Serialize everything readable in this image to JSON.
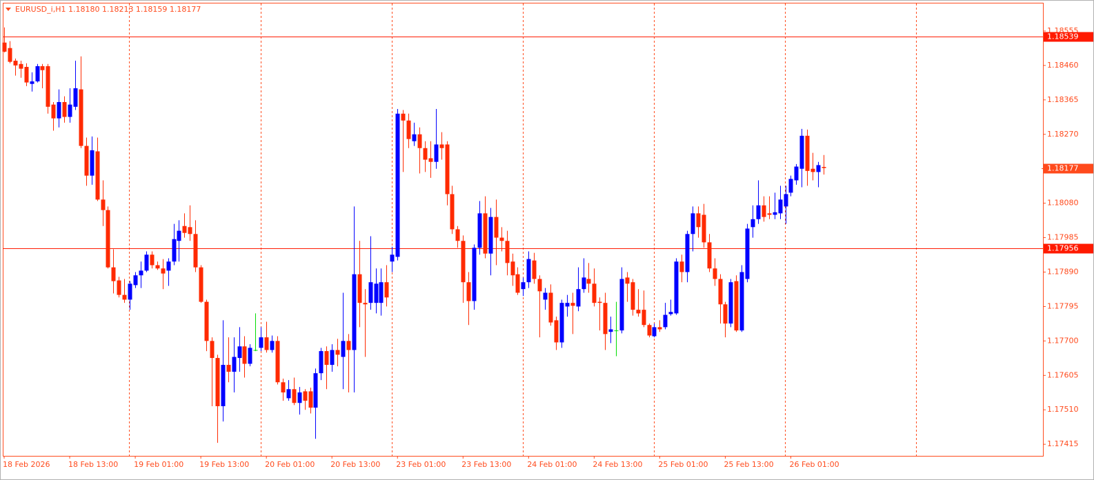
{
  "chart_data": {
    "type": "candlestick",
    "title": "EURUSD_i,H1  1.18180 1.18213 1.18159 1.18177",
    "categories": [
      "18 Feb 2026",
      null,
      null,
      null,
      null,
      null,
      null,
      null,
      null,
      null,
      null,
      null,
      "18 Feb 13:00",
      null,
      null,
      null,
      null,
      null,
      null,
      null,
      null,
      null,
      null,
      null,
      "19 Feb 01:00",
      null,
      null,
      null,
      null,
      null,
      null,
      null,
      null,
      null,
      null,
      null,
      "19 Feb 13:00",
      null,
      null,
      null,
      null,
      null,
      null,
      null,
      null,
      null,
      null,
      null,
      "20 Feb 01:00",
      null,
      null,
      null,
      null,
      null,
      null,
      null,
      null,
      null,
      null,
      null,
      "20 Feb 13:00",
      null,
      null,
      null,
      null,
      null,
      null,
      null,
      null,
      null,
      null,
      null,
      "23 Feb 01:00",
      null,
      null,
      null,
      null,
      null,
      null,
      null,
      null,
      null,
      null,
      null,
      "23 Feb 13:00",
      null,
      null,
      null,
      null,
      null,
      null,
      null,
      null,
      null,
      null,
      null,
      "24 Feb 01:00",
      null,
      null,
      null,
      null,
      null,
      null,
      null,
      null,
      null,
      null,
      null,
      "24 Feb 13:00",
      null,
      null,
      null,
      null,
      null,
      null,
      null,
      null,
      null,
      null,
      null,
      "25 Feb 01:00",
      null,
      null,
      null,
      null,
      null,
      null,
      null,
      null,
      null,
      null,
      null,
      "25 Feb 13:00",
      null,
      null,
      null,
      null,
      null,
      null,
      null,
      null,
      null,
      null,
      null,
      "26 Feb 01:00",
      null,
      null,
      null,
      null,
      null,
      null
    ],
    "open": [
      1.18523,
      1.18508,
      1.18473,
      1.18464,
      1.18456,
      1.18409,
      1.18416,
      1.18458,
      1.18458,
      1.18352,
      1.18314,
      1.18359,
      1.18318,
      1.18346,
      1.18394,
      1.18238,
      1.18156,
      1.18223,
      1.1809,
      1.18061,
      1.17903,
      1.17867,
      1.17827,
      1.17814,
      1.17854,
      1.17881,
      1.17894,
      1.17938,
      1.17909,
      1.179,
      1.17894,
      1.17919,
      1.17976,
      1.18017,
      1.18014,
      1.17995,
      1.17903,
      1.17808,
      1.177,
      1.17653,
      1.1752,
      1.17634,
      1.17615,
      1.17653,
      1.17685,
      1.17637,
      1.17675,
      1.17681,
      1.1771,
      1.17675,
      1.177,
      1.17586,
      1.17542,
      1.17567,
      1.17529,
      1.17561,
      1.17561,
      1.17516,
      1.17611,
      1.17672,
      1.17634,
      1.17675,
      1.17656,
      1.177,
      1.17675,
      1.17884,
      1.17805,
      1.17805,
      1.17805,
      1.17805,
      1.17862,
      1.17919,
      1.17932,
      1.18327,
      1.18308,
      1.18251,
      1.1827,
      1.18232,
      1.18204,
      1.18194,
      1.18242,
      1.18242,
      1.18105,
      1.18008,
      1.17976,
      1.17862,
      1.1781,
      1.17957,
      1.18052,
      1.17941,
      1.18042,
      1.17985,
      1.17976,
      1.17919,
      1.17884,
      1.17843,
      1.17862,
      1.17922,
      1.17871,
      1.17814,
      1.17833,
      1.17757,
      1.17696,
      1.17795,
      1.17805,
      1.17795,
      1.17843,
      1.17871,
      1.17858,
      1.17808,
      1.17805,
      1.17725,
      1.17729,
      1.17729,
      1.17875,
      1.17862,
      1.17786,
      1.17786,
      1.17744,
      1.17713,
      1.17738,
      1.17738,
      1.17774,
      1.17776,
      1.17919,
      1.1789,
      1.17995,
      1.18052,
      1.18048,
      1.17972,
      1.179,
      1.17871,
      1.17801,
      1.17748,
      1.17865,
      1.17729,
      1.17871,
      1.18014,
      1.18036,
      1.18074,
      1.18052,
      1.18048,
      1.18052,
      1.18071,
      1.18109,
      1.18143,
      1.18175,
      1.18266,
      1.18175,
      1.18166,
      1.1818
    ],
    "high": [
      1.18565,
      1.18527,
      1.18479,
      1.18473,
      1.18466,
      1.18441,
      1.18464,
      1.18464,
      1.18464,
      1.18359,
      1.18394,
      1.18375,
      1.18397,
      1.18473,
      1.18485,
      1.18261,
      1.18264,
      1.18261,
      1.18143,
      1.18071,
      1.17953,
      1.17877,
      1.17871,
      1.17865,
      1.1789,
      1.17919,
      1.17947,
      1.17947,
      1.17919,
      1.17926,
      1.17928,
      1.18023,
      1.18033,
      1.18052,
      1.18074,
      1.18033,
      1.17909,
      1.17814,
      1.1771,
      1.17662,
      1.17757,
      1.1771,
      1.1771,
      1.17738,
      1.17713,
      1.17691,
      1.17776,
      1.17738,
      1.17753,
      1.17715,
      1.17713,
      1.17596,
      1.17592,
      1.17599,
      1.17573,
      1.17567,
      1.17571,
      1.17624,
      1.17681,
      1.17685,
      1.17691,
      1.17706,
      1.17833,
      1.17719,
      1.18071,
      1.17976,
      1.17843,
      1.17989,
      1.179,
      1.179,
      1.17909,
      1.1796,
      1.1834,
      1.18337,
      1.18327,
      1.18302,
      1.18289,
      1.18251,
      1.18251,
      1.1834,
      1.18276,
      1.18251,
      1.18128,
      1.18017,
      1.17991,
      1.1789,
      1.17966,
      1.18086,
      1.18099,
      1.18067,
      1.1809,
      1.18014,
      1.18004,
      1.17941,
      1.17903,
      1.17875,
      1.17947,
      1.17943,
      1.17881,
      1.17846,
      1.17856,
      1.17767,
      1.17814,
      1.17827,
      1.17833,
      1.17903,
      1.17928,
      1.17915,
      1.179,
      1.1782,
      1.17833,
      1.17767,
      1.17808,
      1.17903,
      1.1789,
      1.17871,
      1.17843,
      1.17839,
      1.17748,
      1.17748,
      1.17757,
      1.17805,
      1.17814,
      1.17928,
      1.17938,
      1.18004,
      1.18071,
      1.18071,
      1.18078,
      1.17995,
      1.17928,
      1.17884,
      1.17808,
      1.17871,
      1.17881,
      1.17909,
      1.18023,
      1.18074,
      1.18143,
      1.18099,
      1.18099,
      1.18109,
      1.18128,
      1.18128,
      1.18156,
      1.18188,
      1.18285,
      1.18283,
      1.18219,
      1.18194,
      1.18213
    ],
    "low": [
      1.18496,
      1.18466,
      1.18432,
      1.18426,
      1.18403,
      1.18388,
      1.18413,
      1.18397,
      1.18327,
      1.1828,
      1.18289,
      1.18302,
      1.18302,
      1.18337,
      1.18232,
      1.18128,
      1.18131,
      1.18086,
      1.18017,
      1.179,
      1.17831,
      1.1782,
      1.17805,
      1.17786,
      1.17846,
      1.17846,
      1.1789,
      1.179,
      1.17896,
      1.17843,
      1.17852,
      1.17909,
      1.17919,
      1.17985,
      1.17976,
      1.1789,
      1.17805,
      1.17672,
      1.1752,
      1.17419,
      1.17478,
      1.17586,
      1.17558,
      1.17615,
      1.17599,
      1.1763,
      1.17672,
      1.17672,
      1.17668,
      1.17668,
      1.1758,
      1.17535,
      1.17535,
      1.17523,
      1.17497,
      1.1751,
      1.175,
      1.1743,
      1.17592,
      1.17567,
      1.17615,
      1.1763,
      1.17567,
      1.17558,
      1.17558,
      1.17738,
      1.17656,
      1.17786,
      1.17776,
      1.1777,
      1.17795,
      1.1789,
      1.17922,
      1.18166,
      1.18232,
      1.18238,
      1.18162,
      1.18166,
      1.1815,
      1.18175,
      1.182,
      1.18074,
      1.17995,
      1.17957,
      1.17805,
      1.17744,
      1.17786,
      1.17938,
      1.17928,
      1.17881,
      1.17909,
      1.17947,
      1.17881,
      1.17852,
      1.17827,
      1.17824,
      1.17846,
      1.17858,
      1.1771,
      1.17786,
      1.17742,
      1.17675,
      1.17681,
      1.17767,
      1.17719,
      1.17782,
      1.17833,
      1.17833,
      1.17795,
      1.17729,
      1.17675,
      1.17694,
      1.17658,
      1.17721,
      1.17808,
      1.1777,
      1.17767,
      1.17738,
      1.1771,
      1.1771,
      1.17725,
      1.17732,
      1.1777,
      1.17772,
      1.17862,
      1.17862,
      1.17947,
      1.17985,
      1.17957,
      1.1789,
      1.17852,
      1.17748,
      1.1771,
      1.17738,
      1.17725,
      1.17725,
      1.17862,
      1.17985,
      1.18023,
      1.18029,
      1.18036,
      1.18036,
      1.18036,
      1.18023,
      1.18099,
      1.18131,
      1.18124,
      1.18128,
      1.18143,
      1.18124,
      1.18159
    ],
    "close": [
      1.18498,
      1.1847,
      1.1846,
      1.18451,
      1.18413,
      1.18416,
      1.18458,
      1.18447,
      1.18346,
      1.18314,
      1.18359,
      1.18318,
      1.18352,
      1.18397,
      1.18238,
      1.18156,
      1.18226,
      1.1809,
      1.18061,
      1.17903,
      1.17865,
      1.17827,
      1.17814,
      1.17858,
      1.17881,
      1.17894,
      1.17938,
      1.17909,
      1.179,
      1.17886,
      1.17919,
      1.17981,
      1.18004,
      1.17998,
      1.17995,
      1.17903,
      1.17808,
      1.177,
      1.17653,
      1.1752,
      1.17634,
      1.17615,
      1.17656,
      1.17685,
      1.17637,
      1.17681,
      1.17675,
      1.1771,
      1.17675,
      1.177,
      1.17586,
      1.17558,
      1.17567,
      1.17529,
      1.17558,
      1.17535,
      1.17516,
      1.17611,
      1.17672,
      1.17634,
      1.17675,
      1.17662,
      1.177,
      1.17675,
      1.17884,
      1.17805,
      1.17801,
      1.17862,
      1.17858,
      1.17862,
      1.1782,
      1.17938,
      1.18327,
      1.18308,
      1.18257,
      1.1827,
      1.18232,
      1.182,
      1.18194,
      1.18242,
      1.18232,
      1.18105,
      1.18008,
      1.17976,
      1.17862,
      1.1781,
      1.17957,
      1.18052,
      1.17941,
      1.18042,
      1.17985,
      1.17976,
      1.17915,
      1.17881,
      1.17833,
      1.17862,
      1.17926,
      1.17871,
      1.17837,
      1.17833,
      1.17751,
      1.17696,
      1.17805,
      1.17805,
      1.17797,
      1.17843,
      1.17875,
      1.17858,
      1.17805,
      1.17805,
      1.17719,
      1.17732,
      1.17729,
      1.17871,
      1.17858,
      1.17786,
      1.17776,
      1.17744,
      1.17715,
      1.17738,
      1.17732,
      1.17772,
      1.1778,
      1.17919,
      1.1789,
      1.17995,
      1.18052,
      1.18014,
      1.17972,
      1.179,
      1.17871,
      1.17801,
      1.17748,
      1.17862,
      1.17729,
      1.1789,
      1.1801,
      1.18036,
      1.18074,
      1.18042,
      1.18048,
      1.18055,
      1.1809,
      1.18105,
      1.18147,
      1.18181,
      1.18266,
      1.18169,
      1.18166,
      1.18185,
      1.18177
    ],
    "up_color": "#0000ff",
    "down_color": "#ff2a00",
    "doji_color": "#00dd00",
    "axis_color": "#ff4a1c",
    "ylim": [
      1.17383,
      1.18631
    ],
    "yticks": [
      1.18555,
      {
        "value": 1.1846,
        "label": "1.18460"
      },
      1.18365,
      {
        "value": 1.1827,
        "label": "1.18270"
      },
      {
        "value": 1.1808,
        "label": "1.18080"
      },
      1.17985,
      {
        "value": 1.1789,
        "label": "1.17890"
      },
      1.17795,
      {
        "value": 1.177,
        "label": "1.17700"
      },
      1.17605,
      {
        "value": 1.1751,
        "label": "1.17510"
      },
      1.17415
    ],
    "hlines": [
      1.18539,
      1.17956
    ],
    "hline_color": "#ff1a00",
    "grid": true
  }
}
